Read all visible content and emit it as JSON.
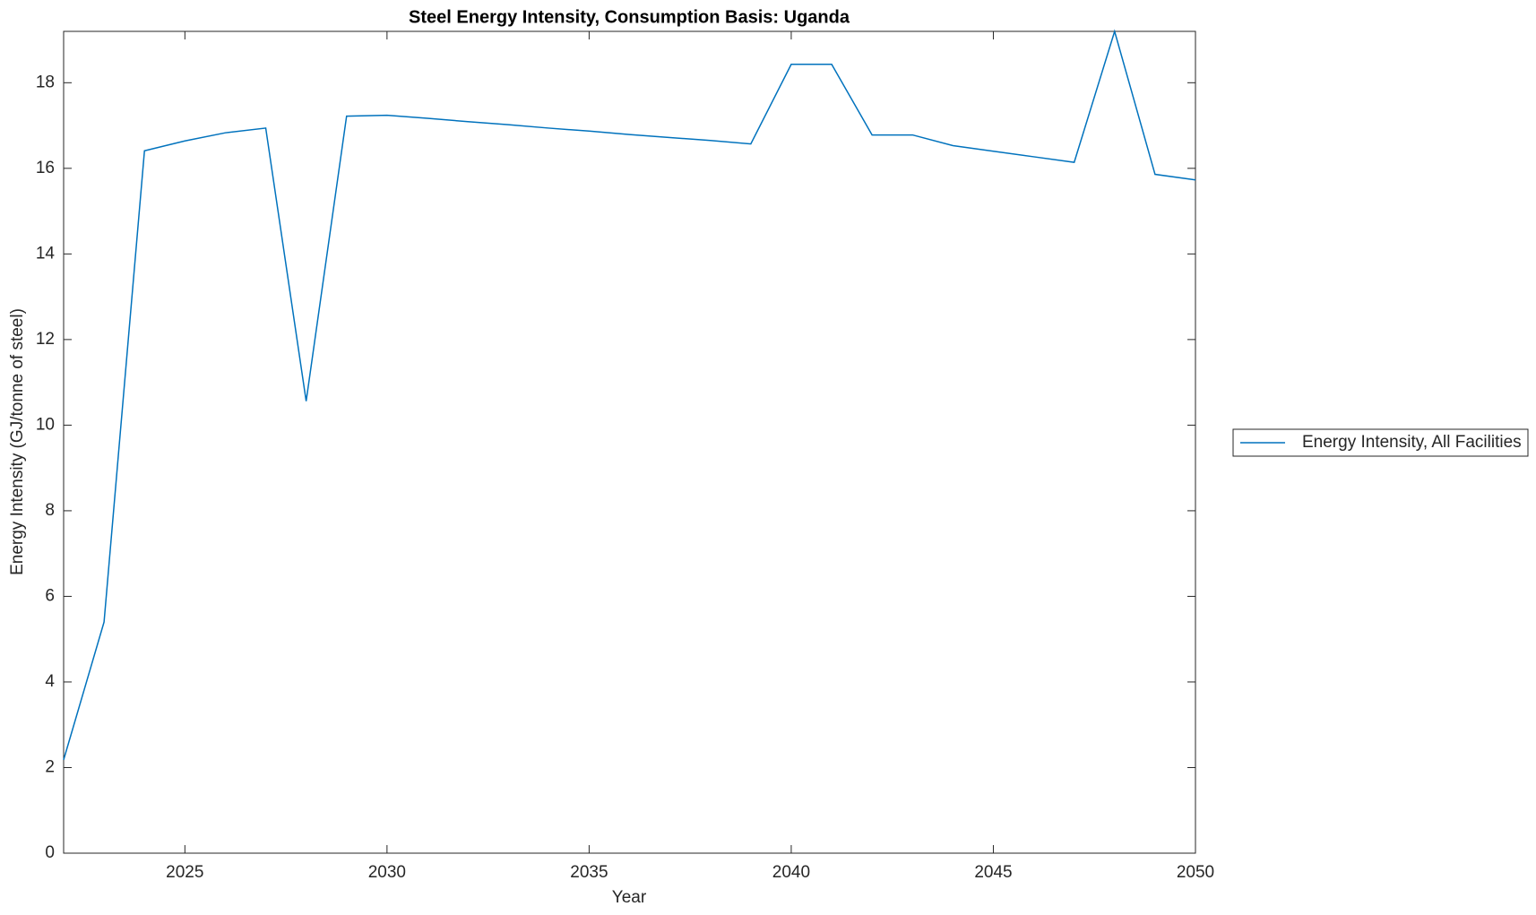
{
  "chart_data": {
    "type": "line",
    "title": "Steel Energy Intensity, Consumption Basis: Uganda",
    "x_label": "Year",
    "y_label": "Energy Intensity (GJ/tonne of steel)",
    "x": [
      2022,
      2023,
      2024,
      2025,
      2026,
      2027,
      2028,
      2029,
      2030,
      2031,
      2032,
      2033,
      2034,
      2035,
      2036,
      2037,
      2038,
      2039,
      2040,
      2041,
      2042,
      2043,
      2044,
      2045,
      2046,
      2047,
      2048,
      2049,
      2050
    ],
    "series": [
      {
        "name": "Energy Intensity, All Facilities",
        "color": "#0072bd",
        "values": [
          2.18,
          5.4,
          16.41,
          16.64,
          16.83,
          16.94,
          10.56,
          17.22,
          17.24,
          17.17,
          17.09,
          17.02,
          16.94,
          16.87,
          16.79,
          16.72,
          16.65,
          16.57,
          18.43,
          18.43,
          16.78,
          16.78,
          16.53,
          16.4,
          16.27,
          16.14,
          19.2,
          15.86,
          15.73
        ]
      }
    ],
    "xlim": [
      2022,
      2050
    ],
    "xticks": [
      2025,
      2030,
      2035,
      2040,
      2045,
      2050
    ],
    "ylim": [
      0,
      19.2
    ],
    "yticks": [
      0,
      2,
      4,
      6,
      8,
      10,
      12,
      14,
      16,
      18
    ],
    "legend": "outside-right"
  }
}
